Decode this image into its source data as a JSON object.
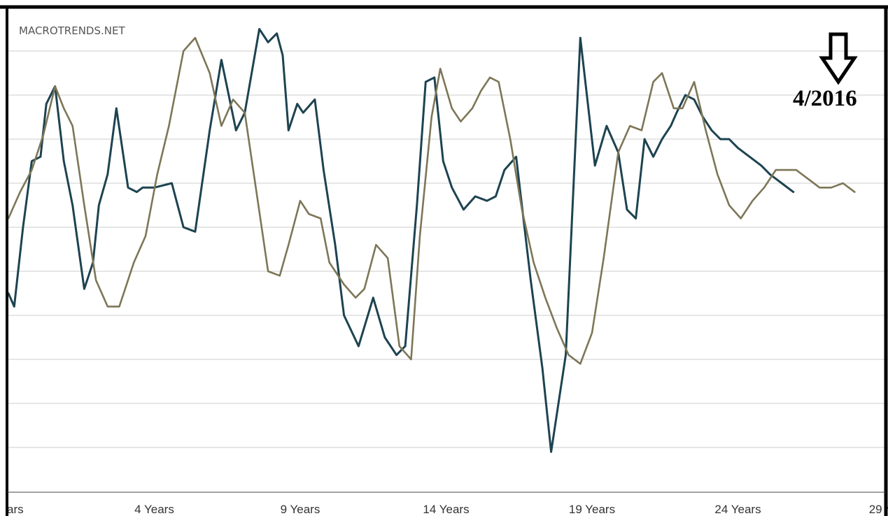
{
  "watermark": "MACROTRENDS.NET",
  "annotation": {
    "text": "4/2016",
    "icon": "down-arrow-icon"
  },
  "colors": {
    "series_current": "#1d4350",
    "series_comparison": "#7d7657",
    "grid": "#cccccc",
    "frame": "#000000"
  },
  "chart_data": {
    "type": "line",
    "xlabel": "",
    "ylabel": "",
    "xlim": [
      0.0,
      30.0
    ],
    "ylim": [
      0,
      11
    ],
    "grid": true,
    "legend": "none",
    "x_ticks": [
      {
        "value": 0.0,
        "label": "ars"
      },
      {
        "value": 5.0,
        "label": "4 Years"
      },
      {
        "value": 10.0,
        "label": "9 Years"
      },
      {
        "value": 15.0,
        "label": "14 Years"
      },
      {
        "value": 20.0,
        "label": "19 Years"
      },
      {
        "value": 25.0,
        "label": "24 Years"
      },
      {
        "value": 30.0,
        "label": "29 Ye"
      }
    ],
    "series": [
      {
        "color": "#1d4350",
        "x": [
          0,
          0.2,
          0.5,
          0.8,
          1.1,
          1.3,
          1.6,
          1.9,
          2.2,
          2.6,
          2.9,
          3.1,
          3.4,
          3.7,
          4.1,
          4.4,
          4.6,
          5.0,
          5.6,
          6.0,
          6.4,
          6.9,
          7.3,
          7.8,
          8.1,
          8.6,
          8.9,
          9.2,
          9.4,
          9.6,
          9.9,
          10.1,
          10.5,
          10.8,
          11.2,
          11.5,
          12.0,
          12.5,
          12.9,
          13.3,
          13.6,
          14.0,
          14.3,
          14.6,
          14.9,
          15.2,
          15.6,
          16.0,
          16.4,
          16.7,
          17.0,
          17.4,
          17.9,
          18.3,
          18.6,
          19.1,
          19.6,
          20.1,
          20.5,
          20.9,
          21.2,
          21.5,
          21.8,
          22.1,
          22.4,
          22.7,
          22.9,
          23.2,
          23.5,
          23.8,
          24.1,
          24.4,
          24.7,
          25.0,
          25.4,
          25.8,
          26.1,
          26.5,
          26.9
        ],
        "y": [
          4.5,
          4.2,
          6.0,
          7.5,
          7.6,
          8.8,
          9.2,
          7.5,
          6.5,
          4.6,
          5.2,
          6.5,
          7.2,
          8.7,
          6.9,
          6.8,
          6.9,
          6.9,
          7.0,
          6.0,
          5.9,
          8.2,
          9.8,
          8.2,
          8.6,
          10.5,
          10.2,
          10.4,
          9.9,
          8.2,
          8.8,
          8.6,
          8.9,
          7.3,
          5.6,
          4.0,
          3.3,
          4.4,
          3.5,
          3.1,
          3.3,
          6.5,
          9.3,
          9.4,
          7.5,
          6.9,
          6.4,
          6.7,
          6.6,
          6.7,
          7.3,
          7.6,
          4.8,
          2.8,
          0.9,
          3.1,
          10.3,
          7.4,
          8.3,
          7.7,
          6.4,
          6.2,
          8.0,
          7.6,
          8.0,
          8.3,
          8.6,
          9.0,
          8.9,
          8.5,
          8.2,
          8.0,
          8.0,
          7.8,
          7.6,
          7.4,
          7.2,
          7.0,
          6.8
        ]
      },
      {
        "color": "#7d7657",
        "x": [
          0,
          0.4,
          0.8,
          1.2,
          1.6,
          1.9,
          2.2,
          2.6,
          3.0,
          3.4,
          3.8,
          4.3,
          4.7,
          5.1,
          5.5,
          6.0,
          6.4,
          6.9,
          7.3,
          7.7,
          8.1,
          8.5,
          8.9,
          9.3,
          9.6,
          10.0,
          10.3,
          10.7,
          11.0,
          11.5,
          11.9,
          12.2,
          12.6,
          13.0,
          13.4,
          13.8,
          14.1,
          14.5,
          14.8,
          15.2,
          15.5,
          15.9,
          16.2,
          16.5,
          16.8,
          17.2,
          17.6,
          18.0,
          18.4,
          18.8,
          19.2,
          19.6,
          20.0,
          20.4,
          20.9,
          21.3,
          21.7,
          22.1,
          22.4,
          22.8,
          23.1,
          23.5,
          23.9,
          24.3,
          24.7,
          25.1,
          25.5,
          25.9,
          26.3,
          26.6,
          27.0,
          27.4,
          27.8,
          28.2,
          28.6,
          29.0
        ],
        "y": [
          6.2,
          6.8,
          7.3,
          8.1,
          9.2,
          8.7,
          8.3,
          6.5,
          4.8,
          4.2,
          4.2,
          5.2,
          5.8,
          7.2,
          8.3,
          10.0,
          10.3,
          9.5,
          8.3,
          8.9,
          8.6,
          6.8,
          5.0,
          4.9,
          5.6,
          6.6,
          6.3,
          6.2,
          5.2,
          4.7,
          4.4,
          4.6,
          5.6,
          5.3,
          3.3,
          3.0,
          5.8,
          8.5,
          9.6,
          8.7,
          8.4,
          8.7,
          9.1,
          9.4,
          9.3,
          8.0,
          6.4,
          5.2,
          4.4,
          3.7,
          3.1,
          2.9,
          3.6,
          5.3,
          7.7,
          8.3,
          8.2,
          9.3,
          9.5,
          8.7,
          8.7,
          9.3,
          8.2,
          7.2,
          6.5,
          6.2,
          6.6,
          6.9,
          7.3,
          7.3,
          7.3,
          7.1,
          6.9,
          6.9,
          7.0,
          6.8
        ]
      }
    ]
  }
}
